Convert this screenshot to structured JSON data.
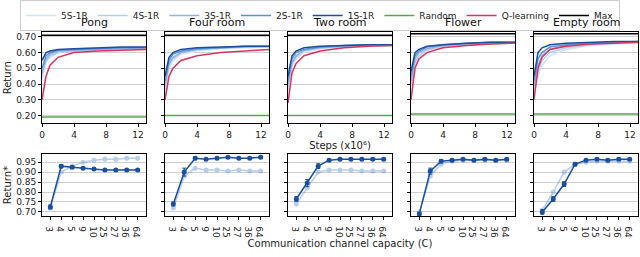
{
  "chart_data": [
    {
      "type": "line",
      "title": "Pong",
      "y_label": "Return",
      "legend": "top",
      "grid": true,
      "x": [
        0,
        0.5,
        1,
        2,
        4,
        7,
        10,
        13
      ],
      "xlim": [
        0,
        13
      ],
      "xticks": [
        0,
        4,
        8,
        12
      ],
      "ylim": [
        0.15,
        0.73
      ],
      "yticks": [
        {
          "value": 0.2,
          "label": "0.20"
        },
        {
          "value": 0.3,
          "label": "0.30"
        },
        {
          "value": 0.4,
          "label": "0.40"
        },
        {
          "value": 0.5,
          "label": "0.50"
        },
        {
          "value": 0.6,
          "label": "0.60"
        },
        {
          "value": 0.7,
          "label": "0.70"
        }
      ],
      "series": [
        {
          "name": "5S-1R",
          "color": "#d4e2f4",
          "values": [
            0.43,
            0.54,
            0.57,
            0.6,
            0.61,
            0.615,
            0.62,
            0.625
          ]
        },
        {
          "name": "4S-1R",
          "color": "#b3cdea",
          "values": [
            0.45,
            0.55,
            0.58,
            0.6,
            0.61,
            0.62,
            0.625,
            0.625
          ]
        },
        {
          "name": "3S-1R",
          "color": "#8fb4df",
          "values": [
            0.47,
            0.56,
            0.59,
            0.61,
            0.615,
            0.62,
            0.625,
            0.63
          ]
        },
        {
          "name": "2S-1R",
          "color": "#5f93cf",
          "values": [
            0.5,
            0.58,
            0.6,
            0.615,
            0.62,
            0.625,
            0.63,
            0.63
          ]
        },
        {
          "name": "1S-1R",
          "color": "#1a4e9f",
          "values": [
            0.55,
            0.6,
            0.61,
            0.62,
            0.625,
            0.63,
            0.635,
            0.635
          ]
        },
        {
          "name": "Random",
          "color": "#55a84f",
          "values": [
            0.19,
            0.19,
            0.19,
            0.19,
            0.19,
            0.19,
            0.19,
            0.19
          ]
        },
        {
          "name": "Q-learning",
          "color": "#d9345f",
          "values": [
            0.3,
            0.45,
            0.52,
            0.57,
            0.6,
            0.61,
            0.615,
            0.62
          ]
        },
        {
          "name": "Max",
          "color": "#000000",
          "values": [
            0.71,
            0.71,
            0.71,
            0.71,
            0.71,
            0.71,
            0.71,
            0.71
          ]
        }
      ]
    },
    {
      "type": "line",
      "title": "Four room",
      "tick_labels": "x",
      "grid": true,
      "x": [
        0,
        0.5,
        1,
        2,
        4,
        7,
        10,
        13
      ],
      "xlim": [
        0,
        13
      ],
      "xticks": [
        0,
        4,
        8,
        12
      ],
      "ylim": [
        0.15,
        0.73
      ],
      "yticks": [
        0.2,
        0.3,
        0.4,
        0.5,
        0.6,
        0.7
      ],
      "series": [
        {
          "name": "5S-1R",
          "color": "#d4e2f4",
          "values": [
            0.36,
            0.5,
            0.55,
            0.59,
            0.61,
            0.625,
            0.63,
            0.635
          ]
        },
        {
          "name": "4S-1R",
          "color": "#b3cdea",
          "values": [
            0.38,
            0.52,
            0.56,
            0.6,
            0.62,
            0.63,
            0.635,
            0.635
          ]
        },
        {
          "name": "3S-1R",
          "color": "#8fb4df",
          "values": [
            0.4,
            0.53,
            0.57,
            0.6,
            0.62,
            0.63,
            0.635,
            0.64
          ]
        },
        {
          "name": "2S-1R",
          "color": "#5f93cf",
          "values": [
            0.42,
            0.55,
            0.59,
            0.61,
            0.625,
            0.63,
            0.64,
            0.64
          ]
        },
        {
          "name": "1S-1R",
          "color": "#1a4e9f",
          "values": [
            0.45,
            0.57,
            0.6,
            0.62,
            0.63,
            0.635,
            0.64,
            0.64
          ]
        },
        {
          "name": "Random",
          "color": "#55a84f",
          "values": [
            0.2,
            0.2,
            0.2,
            0.2,
            0.2,
            0.2,
            0.2,
            0.2
          ]
        },
        {
          "name": "Q-learning",
          "color": "#d9345f",
          "values": [
            0.3,
            0.45,
            0.5,
            0.55,
            0.58,
            0.6,
            0.61,
            0.62
          ]
        },
        {
          "name": "Max",
          "color": "#000000",
          "values": [
            0.71,
            0.71,
            0.71,
            0.71,
            0.71,
            0.71,
            0.71,
            0.71
          ]
        }
      ]
    },
    {
      "type": "line",
      "title": "Two room",
      "x_label": "Steps (x10⁶)",
      "tick_labels": "x",
      "grid": true,
      "x": [
        0,
        0.5,
        1,
        2,
        4,
        7,
        10,
        13
      ],
      "xlim": [
        0,
        13
      ],
      "xticks": [
        0,
        4,
        8,
        12
      ],
      "ylim": [
        0.15,
        0.73
      ],
      "yticks": [
        0.2,
        0.3,
        0.4,
        0.5,
        0.6,
        0.7
      ],
      "series": [
        {
          "name": "5S-1R",
          "color": "#d4e2f4",
          "values": [
            0.36,
            0.51,
            0.56,
            0.6,
            0.625,
            0.635,
            0.64,
            0.645
          ]
        },
        {
          "name": "4S-1R",
          "color": "#b3cdea",
          "values": [
            0.38,
            0.53,
            0.57,
            0.61,
            0.63,
            0.64,
            0.645,
            0.645
          ]
        },
        {
          "name": "3S-1R",
          "color": "#8fb4df",
          "values": [
            0.4,
            0.54,
            0.58,
            0.615,
            0.63,
            0.64,
            0.645,
            0.65
          ]
        },
        {
          "name": "2S-1R",
          "color": "#5f93cf",
          "values": [
            0.42,
            0.56,
            0.6,
            0.62,
            0.635,
            0.645,
            0.65,
            0.65
          ]
        },
        {
          "name": "1S-1R",
          "color": "#1a4e9f",
          "values": [
            0.45,
            0.58,
            0.61,
            0.63,
            0.64,
            0.645,
            0.65,
            0.65
          ]
        },
        {
          "name": "Random",
          "color": "#55a84f",
          "values": [
            0.2,
            0.2,
            0.2,
            0.2,
            0.2,
            0.2,
            0.2,
            0.2
          ]
        },
        {
          "name": "Q-learning",
          "color": "#d9345f",
          "values": [
            0.28,
            0.47,
            0.53,
            0.58,
            0.61,
            0.63,
            0.64,
            0.645
          ]
        },
        {
          "name": "Max",
          "color": "#000000",
          "values": [
            0.71,
            0.71,
            0.71,
            0.71,
            0.71,
            0.71,
            0.71,
            0.71
          ]
        }
      ]
    },
    {
      "type": "line",
      "title": "Flower",
      "tick_labels": "x",
      "grid": true,
      "x": [
        0,
        0.5,
        1,
        2,
        4,
        7,
        10,
        13
      ],
      "xlim": [
        0,
        13
      ],
      "xticks": [
        0,
        4,
        8,
        12
      ],
      "ylim": [
        0.15,
        0.73
      ],
      "yticks": [
        0.2,
        0.3,
        0.4,
        0.5,
        0.6,
        0.7
      ],
      "series": [
        {
          "name": "5S-1R",
          "color": "#d4e2f4",
          "values": [
            0.38,
            0.52,
            0.57,
            0.61,
            0.635,
            0.65,
            0.655,
            0.66
          ]
        },
        {
          "name": "4S-1R",
          "color": "#b3cdea",
          "values": [
            0.4,
            0.54,
            0.58,
            0.62,
            0.64,
            0.65,
            0.66,
            0.66
          ]
        },
        {
          "name": "3S-1R",
          "color": "#8fb4df",
          "values": [
            0.42,
            0.56,
            0.6,
            0.625,
            0.645,
            0.655,
            0.66,
            0.665
          ]
        },
        {
          "name": "2S-1R",
          "color": "#5f93cf",
          "values": [
            0.45,
            0.58,
            0.61,
            0.635,
            0.65,
            0.66,
            0.665,
            0.665
          ]
        },
        {
          "name": "1S-1R",
          "color": "#1a4e9f",
          "values": [
            0.48,
            0.6,
            0.62,
            0.64,
            0.65,
            0.66,
            0.665,
            0.665
          ]
        },
        {
          "name": "Random",
          "color": "#55a84f",
          "values": [
            0.21,
            0.21,
            0.21,
            0.21,
            0.21,
            0.21,
            0.21,
            0.21
          ]
        },
        {
          "name": "Q-learning",
          "color": "#d9345f",
          "values": [
            0.3,
            0.5,
            0.56,
            0.6,
            0.63,
            0.645,
            0.655,
            0.66
          ]
        },
        {
          "name": "Max",
          "color": "#000000",
          "values": [
            0.72,
            0.72,
            0.72,
            0.72,
            0.72,
            0.72,
            0.72,
            0.72
          ]
        }
      ]
    },
    {
      "type": "line",
      "title": "Empty room",
      "tick_labels": "x",
      "grid": true,
      "x": [
        0,
        0.5,
        1,
        2,
        4,
        7,
        10,
        13
      ],
      "xlim": [
        0,
        13
      ],
      "xticks": [
        0,
        4,
        8,
        12
      ],
      "ylim": [
        0.15,
        0.73
      ],
      "yticks": [
        0.2,
        0.3,
        0.4,
        0.5,
        0.6,
        0.7
      ],
      "series": [
        {
          "name": "5S-1R",
          "color": "#d4e2f4",
          "values": [
            0.35,
            0.45,
            0.52,
            0.58,
            0.62,
            0.645,
            0.655,
            0.66
          ]
        },
        {
          "name": "4S-1R",
          "color": "#b3cdea",
          "values": [
            0.37,
            0.48,
            0.55,
            0.6,
            0.63,
            0.65,
            0.66,
            0.665
          ]
        },
        {
          "name": "3S-1R",
          "color": "#8fb4df",
          "values": [
            0.39,
            0.52,
            0.58,
            0.62,
            0.645,
            0.655,
            0.665,
            0.665
          ]
        },
        {
          "name": "2S-1R",
          "color": "#5f93cf",
          "values": [
            0.42,
            0.56,
            0.6,
            0.635,
            0.65,
            0.66,
            0.665,
            0.67
          ]
        },
        {
          "name": "1S-1R",
          "color": "#1a4e9f",
          "values": [
            0.45,
            0.6,
            0.63,
            0.65,
            0.66,
            0.665,
            0.67,
            0.67
          ]
        },
        {
          "name": "Random",
          "color": "#55a84f",
          "values": [
            0.21,
            0.21,
            0.21,
            0.21,
            0.21,
            0.21,
            0.21,
            0.21
          ]
        },
        {
          "name": "Q-learning",
          "color": "#d9345f",
          "values": [
            0.3,
            0.5,
            0.57,
            0.62,
            0.64,
            0.655,
            0.66,
            0.665
          ]
        },
        {
          "name": "Max",
          "color": "#000000",
          "values": [
            0.72,
            0.72,
            0.72,
            0.72,
            0.72,
            0.72,
            0.72,
            0.72
          ]
        }
      ]
    },
    {
      "type": "line",
      "y_label": "Return*",
      "grid": true,
      "categories": [
        "3",
        "4",
        "5",
        "9",
        "10",
        "25",
        "27",
        "36",
        "64"
      ],
      "ylim": [
        0.68,
        0.99
      ],
      "yticks": [
        {
          "value": 0.7,
          "label": "0.70"
        },
        0.75,
        {
          "value": 0.8,
          "label": "0.80"
        },
        0.85,
        {
          "value": 0.9,
          "label": "0.90"
        },
        0.95
      ],
      "series": [
        {
          "name": "2S-1R",
          "color": "#5f93cf",
          "marker": "circle",
          "values": [
            0.72,
            0.9,
            0.93,
            0.95,
            0.96,
            0.965,
            0.965,
            0.97,
            0.97
          ]
        },
        {
          "name": "1S-1R",
          "color": "#1a4e9f",
          "marker": "circle",
          "values": [
            0.725,
            0.93,
            0.925,
            0.92,
            0.915,
            0.91,
            0.91,
            0.91,
            0.91
          ],
          "errors": [
            0.01,
            0.008,
            0.006,
            0.005,
            0.005,
            0.005,
            0.005,
            0.005,
            0.005
          ]
        }
      ]
    },
    {
      "type": "line",
      "tick_labels": "x",
      "grid": true,
      "categories": [
        "3",
        "4",
        "5",
        "9",
        "10",
        "25",
        "27",
        "36",
        "64"
      ],
      "ylim": [
        0.68,
        0.99
      ],
      "yticks": [
        0.7,
        0.75,
        0.8,
        0.85,
        0.9,
        0.95
      ],
      "series": [
        {
          "name": "2S-1R",
          "color": "#5f93cf",
          "marker": "circle",
          "values": [
            0.72,
            0.88,
            0.92,
            0.91,
            0.91,
            0.905,
            0.91,
            0.905,
            0.905
          ]
        },
        {
          "name": "1S-1R",
          "color": "#1a4e9f",
          "marker": "circle",
          "values": [
            0.74,
            0.9,
            0.97,
            0.965,
            0.97,
            0.975,
            0.97,
            0.97,
            0.975
          ],
          "errors": [
            0.01,
            0.02,
            0.008,
            0.005,
            0.005,
            0.005,
            0.005,
            0.005,
            0.005
          ]
        }
      ]
    },
    {
      "type": "line",
      "x_label": "Communication channel capacity (C)",
      "tick_labels": "x",
      "grid": true,
      "categories": [
        "3",
        "4",
        "5",
        "9",
        "10",
        "25",
        "27",
        "36",
        "64"
      ],
      "ylim": [
        0.68,
        0.99
      ],
      "yticks": [
        0.7,
        0.75,
        0.8,
        0.85,
        0.9,
        0.95
      ],
      "series": [
        {
          "name": "2S-1R",
          "color": "#5f93cf",
          "marker": "circle",
          "values": [
            0.74,
            0.82,
            0.9,
            0.91,
            0.91,
            0.91,
            0.905,
            0.905,
            0.905
          ]
        },
        {
          "name": "1S-1R",
          "color": "#1a4e9f",
          "marker": "circle",
          "values": [
            0.765,
            0.845,
            0.93,
            0.96,
            0.965,
            0.965,
            0.965,
            0.965,
            0.965
          ],
          "errors": [
            0.012,
            0.018,
            0.012,
            0.006,
            0.005,
            0.005,
            0.005,
            0.005,
            0.005
          ]
        }
      ]
    },
    {
      "type": "line",
      "tick_labels": "x",
      "grid": true,
      "categories": [
        "3",
        "4",
        "5",
        "9",
        "10",
        "25",
        "27",
        "36",
        "64"
      ],
      "ylim": [
        0.68,
        0.99
      ],
      "yticks": [
        0.7,
        0.75,
        0.8,
        0.85,
        0.9,
        0.95
      ],
      "series": [
        {
          "name": "2S-1R",
          "color": "#5f93cf",
          "marker": "circle",
          "values": [
            0.7,
            0.88,
            0.94,
            0.955,
            0.96,
            0.96,
            0.96,
            0.96,
            0.96
          ]
        },
        {
          "name": "1S-1R",
          "color": "#1a4e9f",
          "marker": "circle",
          "values": [
            0.69,
            0.905,
            0.955,
            0.96,
            0.965,
            0.96,
            0.965,
            0.96,
            0.965
          ],
          "errors": [
            0.008,
            0.015,
            0.008,
            0.005,
            0.005,
            0.005,
            0.005,
            0.005,
            0.005
          ]
        }
      ]
    },
    {
      "type": "line",
      "tick_labels": "x",
      "grid": true,
      "categories": [
        "3",
        "4",
        "5",
        "9",
        "10",
        "25",
        "27",
        "36",
        "64"
      ],
      "ylim": [
        0.68,
        0.99
      ],
      "yticks": [
        0.7,
        0.75,
        0.8,
        0.85,
        0.9,
        0.95
      ],
      "series": [
        {
          "name": "2S-1R",
          "color": "#5f93cf",
          "marker": "circle",
          "values": [
            0.71,
            0.8,
            0.9,
            0.94,
            0.95,
            0.955,
            0.955,
            0.955,
            0.955
          ]
        },
        {
          "name": "1S-1R",
          "color": "#1a4e9f",
          "marker": "circle",
          "values": [
            0.7,
            0.765,
            0.84,
            0.94,
            0.96,
            0.965,
            0.96,
            0.965,
            0.965
          ],
          "errors": [
            0.012,
            0.012,
            0.012,
            0.008,
            0.005,
            0.005,
            0.005,
            0.005,
            0.005
          ]
        }
      ]
    }
  ]
}
